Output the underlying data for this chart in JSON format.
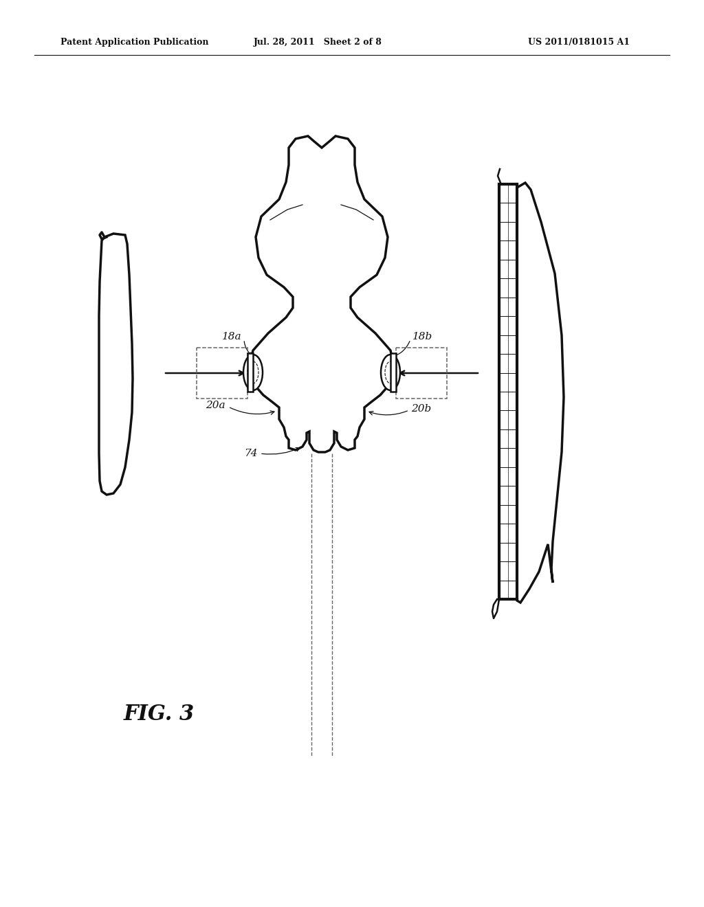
{
  "bg_color": "#ffffff",
  "line_color": "#111111",
  "dashed_color": "#666666",
  "header_left": "Patent Application Publication",
  "header_mid": "Jul. 28, 2011   Sheet 2 of 8",
  "header_right": "US 2011/0181015 A1",
  "fig_label": "FIG. 3"
}
